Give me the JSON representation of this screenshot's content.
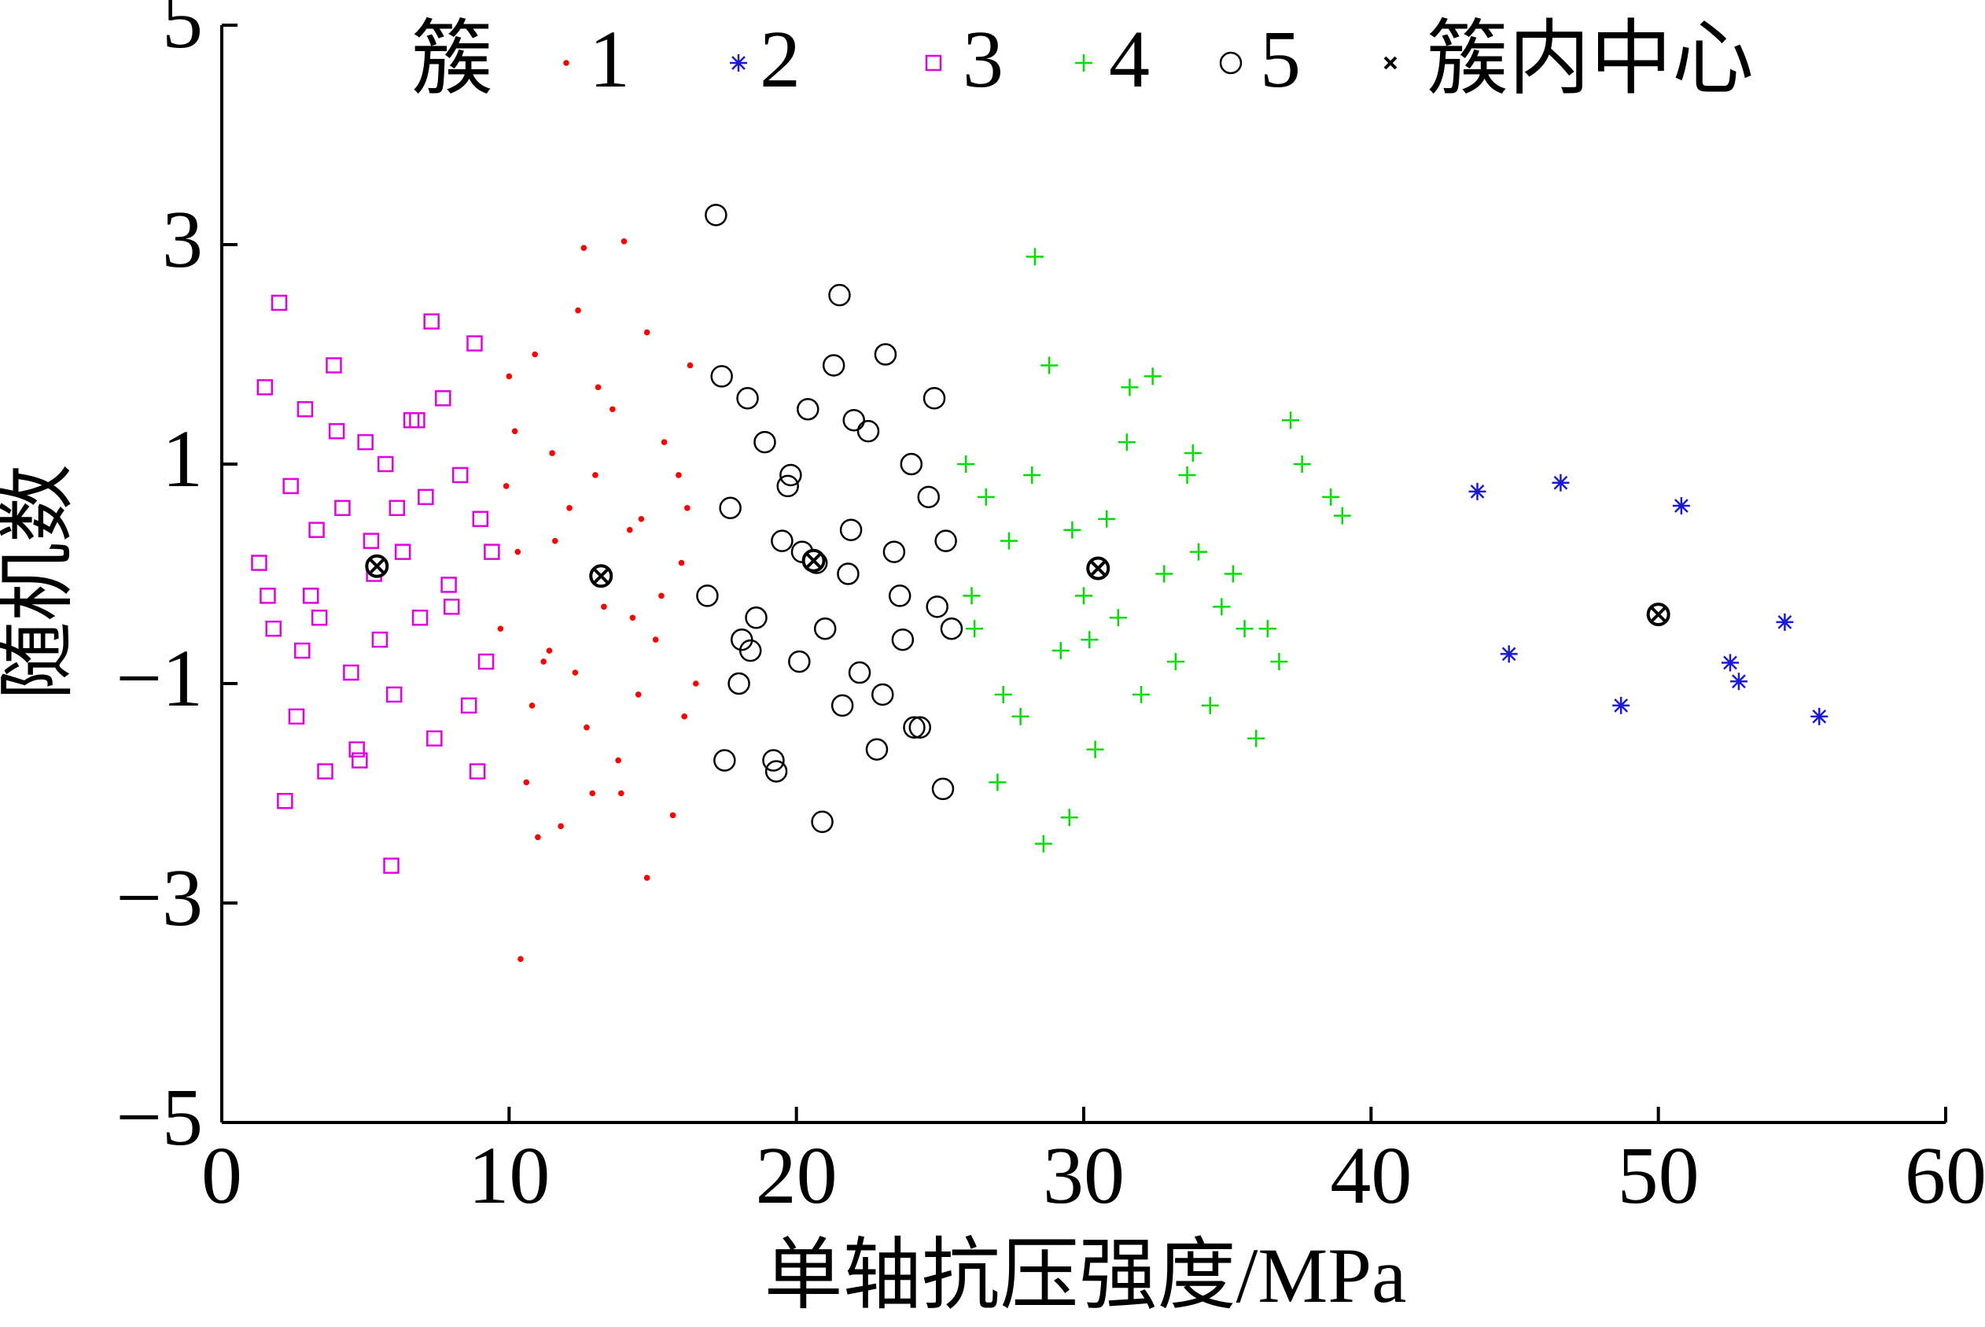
{
  "chart_data": {
    "type": "scatter",
    "xlabel": "单轴抗压强度/MPa",
    "ylabel": "随机数",
    "legend_title": "簇",
    "xlim": [
      0,
      60
    ],
    "ylim": [
      -5,
      5
    ],
    "xticks": [
      0,
      10,
      20,
      30,
      40,
      50,
      60
    ],
    "yticks": [
      {
        "value": -5,
        "label": "−5"
      },
      {
        "value": -3,
        "label": "−3"
      },
      {
        "value": -1,
        "label": "−1"
      },
      1,
      3,
      5
    ],
    "legend_position": "top",
    "series": [
      {
        "name": "1",
        "color": "#ff0000",
        "marker": "dot",
        "x": [
          10.4,
          14.0,
          12.6,
          14.8,
          9.7,
          10.0,
          10.3,
          10.6,
          10.9,
          11.2,
          11.5,
          11.8,
          12.1,
          12.4,
          12.7,
          13.0,
          13.3,
          13.6,
          13.9,
          14.2,
          14.5,
          14.8,
          15.1,
          15.4,
          15.7,
          16.0,
          16.3,
          16.5,
          9.9,
          10.8,
          11.6,
          12.3,
          13.1,
          13.8,
          14.6,
          15.3,
          16.1,
          11.0,
          12.9,
          15.9,
          10.2,
          13.5,
          14.3,
          11.4,
          16.2
        ],
        "values": [
          -3.51,
          3.03,
          2.97,
          -2.77,
          -0.5,
          1.8,
          0.2,
          -1.9,
          2.0,
          -0.8,
          1.1,
          -2.3,
          0.6,
          2.4,
          -1.4,
          0.9,
          -0.3,
          1.5,
          -2.0,
          0.4,
          -1.1,
          2.2,
          -0.6,
          1.2,
          -2.2,
          0.1,
          1.9,
          -1.0,
          0.8,
          -1.2,
          0.3,
          -0.9,
          1.7,
          -1.7,
          0.5,
          -0.2,
          -1.3,
          -2.4,
          -2.0,
          0.9,
          1.3,
          0.0,
          -0.4,
          -0.7,
          0.6
        ]
      },
      {
        "name": "2",
        "color": "#1a1ad6",
        "marker": "star",
        "x": [
          43.7,
          46.6,
          50.8,
          44.8,
          48.7,
          52.5,
          52.8,
          54.4,
          55.6
        ],
        "values": [
          0.75,
          0.83,
          0.62,
          -0.73,
          -1.2,
          -0.81,
          -0.98,
          -0.44,
          -1.3
        ]
      },
      {
        "name": "3",
        "color": "#e000e0",
        "marker": "square",
        "x": [
          2.0,
          5.9,
          2.2,
          7.3,
          1.3,
          1.5,
          1.8,
          2.4,
          2.6,
          2.9,
          3.1,
          3.3,
          3.6,
          3.9,
          4.2,
          4.5,
          4.8,
          5.0,
          5.2,
          5.5,
          5.7,
          6.0,
          6.3,
          6.6,
          6.9,
          7.1,
          7.4,
          7.7,
          8.0,
          8.3,
          8.6,
          8.8,
          9.0,
          9.2,
          9.4,
          1.6,
          2.8,
          4.0,
          4.7,
          6.8,
          7.9,
          8.9,
          3.4,
          5.3,
          6.1
        ],
        "values": [
          2.47,
          -2.66,
          -2.07,
          2.3,
          0.1,
          1.7,
          -0.5,
          0.8,
          -1.3,
          1.5,
          -0.2,
          0.4,
          -1.8,
          1.9,
          0.6,
          -0.9,
          -1.7,
          1.2,
          0.3,
          -0.6,
          1.0,
          -1.1,
          0.2,
          1.4,
          -0.4,
          0.7,
          -1.5,
          1.6,
          -0.3,
          0.9,
          -1.2,
          2.1,
          0.5,
          -0.8,
          0.2,
          -0.2,
          -0.7,
          1.3,
          -1.6,
          1.4,
          -0.1,
          -1.8,
          -0.4,
          0.0,
          0.6
        ]
      },
      {
        "name": "4",
        "color": "#00dd00",
        "marker": "plus",
        "x": [
          28.3,
          28.6,
          29.5,
          39.0,
          25.9,
          26.2,
          26.6,
          27.0,
          27.4,
          27.8,
          28.2,
          28.8,
          29.2,
          29.6,
          30.0,
          30.4,
          30.8,
          31.2,
          31.6,
          32.0,
          32.4,
          32.8,
          33.2,
          33.6,
          34.0,
          34.4,
          34.8,
          35.2,
          35.6,
          36.0,
          36.4,
          36.8,
          37.2,
          37.6,
          38.6,
          26.1,
          27.2,
          31.5,
          33.8,
          30.2
        ],
        "values": [
          2.89,
          -2.46,
          -2.22,
          0.53,
          1.0,
          -0.5,
          0.7,
          -1.9,
          0.3,
          -1.3,
          0.9,
          1.9,
          -0.7,
          0.4,
          -0.2,
          -1.6,
          0.5,
          -0.4,
          1.7,
          -1.1,
          1.8,
          0.0,
          -0.8,
          0.9,
          0.2,
          -1.2,
          -0.3,
          0.0,
          -0.5,
          -1.5,
          -0.5,
          -0.8,
          1.4,
          1.0,
          0.7,
          -0.2,
          -1.1,
          1.2,
          1.1,
          -0.6
        ]
      },
      {
        "name": "5",
        "color": "#000000",
        "marker": "circle",
        "x": [
          17.2,
          21.5,
          20.9,
          25.1,
          16.9,
          17.4,
          17.7,
          18.0,
          18.3,
          18.6,
          18.9,
          19.2,
          19.5,
          19.8,
          20.1,
          20.4,
          20.7,
          21.0,
          21.3,
          21.6,
          21.9,
          22.2,
          22.5,
          22.8,
          23.1,
          23.4,
          23.7,
          24.0,
          24.3,
          24.6,
          24.9,
          25.2,
          25.4,
          17.5,
          18.4,
          19.3,
          20.2,
          22.0,
          23.0,
          24.1,
          24.8,
          18.1,
          19.7,
          21.8,
          23.6
        ],
        "values": [
          3.27,
          2.54,
          -2.26,
          -1.96,
          -0.2,
          1.8,
          0.6,
          -1.0,
          1.6,
          -0.4,
          1.2,
          -1.7,
          0.3,
          0.9,
          -0.8,
          1.5,
          0.1,
          -0.5,
          1.9,
          -1.2,
          0.4,
          -0.9,
          1.3,
          -1.6,
          2.0,
          0.2,
          -0.6,
          1.0,
          -1.4,
          0.7,
          -0.3,
          0.3,
          -0.5,
          -1.7,
          -0.7,
          -1.8,
          0.2,
          1.4,
          -1.1,
          -1.4,
          1.6,
          -0.6,
          0.8,
          0.0,
          -0.2
        ]
      },
      {
        "name": "簇内中心",
        "color": "#000000",
        "marker": "circle-x",
        "legend_marker": "x",
        "x": [
          5.4,
          13.2,
          20.6,
          30.5,
          50.0
        ],
        "values": [
          0.07,
          -0.02,
          0.12,
          0.05,
          -0.37
        ]
      }
    ]
  }
}
